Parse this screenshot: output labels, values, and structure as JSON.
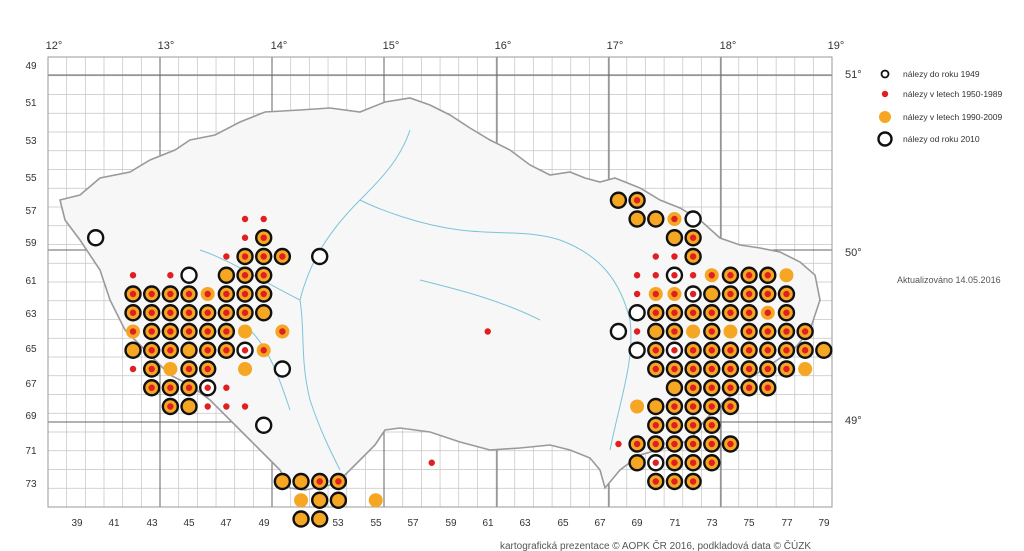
{
  "map": {
    "x_ticks": [
      "39",
      "41",
      "43",
      "45",
      "47",
      "49",
      "51",
      "53",
      "55",
      "57",
      "59",
      "61",
      "63",
      "65",
      "67",
      "69",
      "71",
      "73",
      "75",
      "77",
      "79"
    ],
    "y_ticks": [
      "49",
      "51",
      "53",
      "55",
      "57",
      "59",
      "61",
      "63",
      "65",
      "67",
      "69",
      "71",
      "73"
    ],
    "lon_labels": [
      "12°",
      "13°",
      "14°",
      "15°",
      "16°",
      "17°",
      "18°",
      "19°"
    ],
    "lat_labels": [
      "51°",
      "50°",
      "49°"
    ]
  },
  "legend": {
    "items": [
      {
        "symbol": "ring-small",
        "label": "nálezy do roku 1949"
      },
      {
        "symbol": "red-dot",
        "label": "nálezy v letech 1950-1989"
      },
      {
        "symbol": "orange-dot",
        "label": "nálezy v letech 1990-2009"
      },
      {
        "symbol": "ring-large",
        "label": "nálezy od roku 2010"
      }
    ]
  },
  "updated": "Aktualizováno 14.05.2016",
  "credit": "kartografická prezentace © AOPK ČR 2016, podkladová data © ČÚZK",
  "colors": {
    "red": "#e02020",
    "orange": "#f5a623",
    "ring": "#111111",
    "grid": "#bbbbbb",
    "river": "#7cc4d8",
    "border": "#999999"
  }
}
